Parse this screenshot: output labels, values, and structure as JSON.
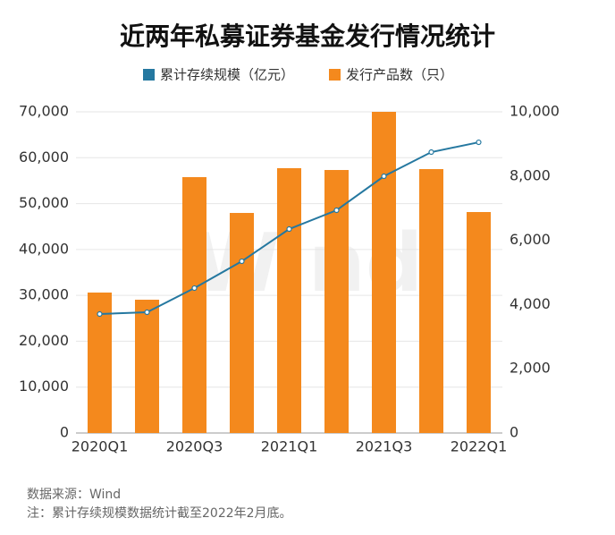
{
  "chart_data": {
    "type": "bar_line",
    "title": "近两年私募证券基金发行情况统计",
    "watermark": "Wind",
    "categories": [
      "2020Q1",
      null,
      "2020Q3",
      null,
      "2021Q1",
      null,
      "2021Q3",
      null,
      "2022Q1"
    ],
    "series": [
      {
        "name": "累计存续规模（亿元）",
        "color": "#2578a0",
        "type": "line",
        "axis": "y",
        "values": [
          25930,
          26320,
          31580,
          37430,
          44450,
          48550,
          55960,
          61220,
          63360
        ]
      },
      {
        "name": "发行产品数（只）",
        "color": "#f4891d",
        "type": "bar",
        "axis": "y2",
        "values": [
          4373,
          4150,
          7967,
          6852,
          8245,
          8189,
          10000,
          8217,
          6880
        ]
      }
    ],
    "ylim": [
      0,
      70000
    ],
    "yticks": [
      0,
      {
        "value": 10000,
        "label": "10,000"
      },
      {
        "value": 20000,
        "label": "20,000"
      },
      {
        "value": 30000,
        "label": "30,000"
      },
      {
        "value": 40000,
        "label": "40,000"
      },
      {
        "value": 50000,
        "label": "50,000"
      },
      {
        "value": 60000,
        "label": "60,000"
      },
      {
        "value": 70000,
        "label": "70,000"
      }
    ],
    "y2lim": [
      0,
      10000
    ],
    "y2ticks": [
      0,
      {
        "value": 2000,
        "label": "2,000"
      },
      {
        "value": 4000,
        "label": "4,000"
      },
      {
        "value": 6000,
        "label": "6,000"
      },
      {
        "value": 8000,
        "label": "8,000"
      },
      {
        "value": 10000,
        "label": "10,000"
      }
    ],
    "grid": true,
    "legend": "top",
    "source": "数据来源：Wind",
    "note": "注：累计存续规模数据统计截至2022年2月底。"
  }
}
